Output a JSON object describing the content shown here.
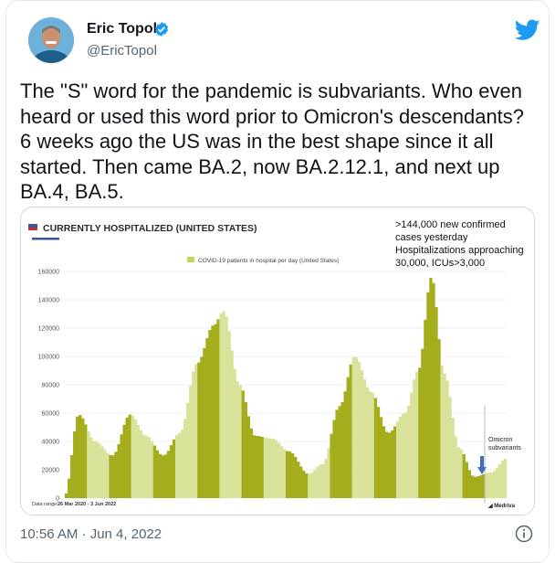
{
  "tweet": {
    "author_name": "Eric Topol",
    "author_handle": "@EricTopol",
    "text": "The \"S\" word for the pandemic is subvariants. Who even heard or used this word prior to Omicron's descendants? 6 weeks ago the US was in the best shape since it all started. Then came BA.2, now BA.2.12.1, and next up BA.4, BA.5.",
    "timestamp": "10:56 AM · Jun 4, 2022"
  },
  "icons": {
    "verified": "verified-badge-icon",
    "brand": "twitter-bird-icon",
    "info": "info-icon"
  },
  "colors": {
    "brand_blue": "#1d9bf0",
    "bar_dark": "#a4ad1c",
    "bar_light": "#d9e29a",
    "chart_title_red": "#cf2e2e"
  },
  "chart_data": {
    "type": "area",
    "title": "CURRENTLY HOSPITALIZED (UNITED STATES)",
    "legend": "COVID-19 patients in hospital per day (United States)",
    "annotation": [
      ">144,000 new confirmed",
      "cases yesterday",
      "Hospitalizations approaching",
      "30,000,  ICUs>3,000"
    ],
    "omicron_label": [
      "Omicron",
      "subvariants"
    ],
    "data_range_label": "Data range:",
    "data_range_value": "26 Mar 2020 - 3 Jun 2022",
    "source": "Medriva",
    "ylim": [
      0,
      160000
    ],
    "yticks": [
      "0",
      "20000",
      "40000",
      "60000",
      "80000",
      "100000",
      "120000",
      "140000",
      "160000"
    ],
    "x": [
      "2020-03-26",
      "2020-04-20",
      "2020-05-20",
      "2020-06-20",
      "2020-07-22",
      "2020-08-20",
      "2020-09-20",
      "2020-10-20",
      "2020-11-20",
      "2020-12-20",
      "2021-01-07",
      "2021-02-05",
      "2021-03-05",
      "2021-04-05",
      "2021-05-05",
      "2021-06-10",
      "2021-07-05",
      "2021-08-05",
      "2021-09-01",
      "2021-10-01",
      "2021-11-01",
      "2021-12-01",
      "2021-12-25",
      "2022-01-18",
      "2022-02-10",
      "2022-03-10",
      "2022-04-05",
      "2022-05-05",
      "2022-06-03"
    ],
    "values": [
      2000,
      59000,
      40000,
      30000,
      59000,
      44000,
      30000,
      46000,
      95000,
      122000,
      132000,
      80000,
      44000,
      42000,
      33000,
      17000,
      24000,
      65000,
      100000,
      75000,
      46000,
      60000,
      90000,
      156000,
      88000,
      35000,
      15000,
      18000,
      28000
    ]
  }
}
